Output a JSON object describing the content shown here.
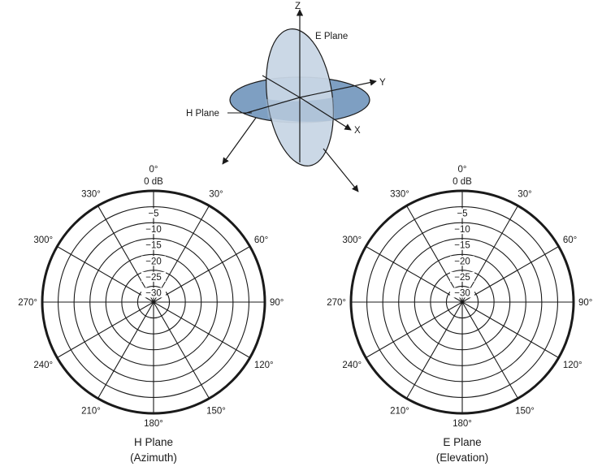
{
  "axes_diagram": {
    "z_label": "Z",
    "y_label": "Y",
    "x_label": "X",
    "e_plane_label": "E Plane",
    "h_plane_label": "H Plane"
  },
  "polar_charts": [
    {
      "angle_top": "0°",
      "ring_labels": [
        "0 dB",
        "−5",
        "−10",
        "−15",
        "−20",
        "−25",
        "−30"
      ],
      "angle_labels": [
        "30°",
        "60°",
        "90°",
        "120°",
        "150°",
        "180°",
        "210°",
        "240°",
        "270°",
        "300°",
        "330°"
      ],
      "caption_line1": "H Plane",
      "caption_line2": "(Azimuth)"
    },
    {
      "angle_top": "0°",
      "ring_labels": [
        "0 dB",
        "−5",
        "−10",
        "−15",
        "−20",
        "−25",
        "−30"
      ],
      "angle_labels": [
        "30°",
        "60°",
        "90°",
        "120°",
        "150°",
        "180°",
        "210°",
        "240°",
        "270°",
        "300°",
        "330°"
      ],
      "caption_line1": "E Plane",
      "caption_line2": "(Elevation)"
    }
  ],
  "colors": {
    "h_plane_fill": "#7e9fc2",
    "e_plane_fill": "#c8d6e5",
    "line": "#1a1a1a"
  }
}
